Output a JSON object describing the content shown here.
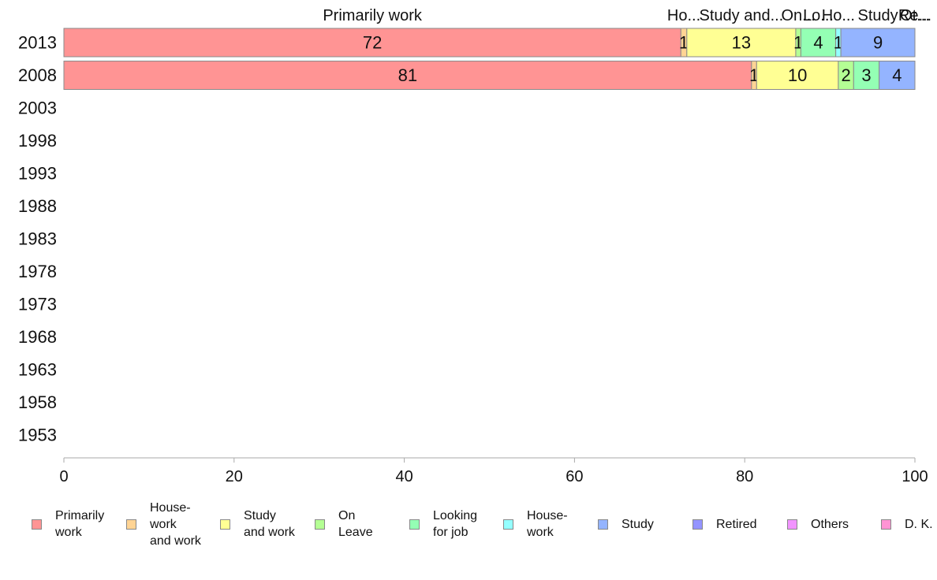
{
  "chart_data": {
    "type": "bar",
    "orientation": "horizontal",
    "stacked": true,
    "categories": [
      "2013",
      "2008",
      "2003",
      "1998",
      "1993",
      "1988",
      "1983",
      "1978",
      "1973",
      "1968",
      "1963",
      "1958",
      "1953"
    ],
    "xlim": [
      0,
      100
    ],
    "xticks": [
      "0",
      "20",
      "40",
      "60",
      "80",
      "100"
    ],
    "grid": false,
    "legend_position": "bottom",
    "series": [
      {
        "name": "Primarily work",
        "legend_label": "Primarily\nwork",
        "top_label": "Primarily work",
        "color": "#ff9494",
        "values": [
          72.5,
          80.8,
          null,
          null,
          null,
          null,
          null,
          null,
          null,
          null,
          null,
          null,
          null
        ],
        "data_labels": [
          "72",
          "81"
        ]
      },
      {
        "name": "House-work and work",
        "legend_label": "House-\nwork\nand work",
        "top_label": "Ho...",
        "color": "#ffd494",
        "values": [
          0.7,
          0.6,
          null,
          null,
          null,
          null,
          null,
          null,
          null,
          null,
          null,
          null,
          null
        ],
        "data_labels": [
          "1",
          "1"
        ]
      },
      {
        "name": "Study and work",
        "legend_label": "Study\nand work",
        "top_label": "Study and...",
        "color": "#ffff94",
        "values": [
          12.8,
          9.6,
          null,
          null,
          null,
          null,
          null,
          null,
          null,
          null,
          null,
          null,
          null
        ],
        "data_labels": [
          "13",
          "10"
        ]
      },
      {
        "name": "On Leave",
        "legend_label": "On\nLeave",
        "top_label": "On...",
        "color": "#b4ff94",
        "values": [
          0.6,
          1.8,
          null,
          null,
          null,
          null,
          null,
          null,
          null,
          null,
          null,
          null,
          null
        ],
        "data_labels": [
          "1",
          "2"
        ]
      },
      {
        "name": "Looking for job",
        "legend_label": "Looking\nfor job",
        "top_label": "Lo...",
        "color": "#94ffb4",
        "values": [
          4.1,
          3.0,
          null,
          null,
          null,
          null,
          null,
          null,
          null,
          null,
          null,
          null,
          null
        ],
        "data_labels": [
          "4",
          "3"
        ]
      },
      {
        "name": "House-work",
        "legend_label": "House-\nwork",
        "top_label": "Ho...",
        "color": "#94ffff",
        "values": [
          0.6,
          0.0,
          null,
          null,
          null,
          null,
          null,
          null,
          null,
          null,
          null,
          null,
          null
        ],
        "data_labels": [
          "1",
          ""
        ]
      },
      {
        "name": "Study",
        "legend_label": "Study",
        "top_label": "Study",
        "color": "#94b4ff",
        "values": [
          8.7,
          4.2,
          null,
          null,
          null,
          null,
          null,
          null,
          null,
          null,
          null,
          null,
          null
        ],
        "data_labels": [
          "9",
          "4"
        ]
      },
      {
        "name": "Retired",
        "legend_label": "Retired",
        "top_label": "Re...",
        "color": "#9494ff",
        "values": [
          0.0,
          0.0,
          null,
          null,
          null,
          null,
          null,
          null,
          null,
          null,
          null,
          null,
          null
        ],
        "data_labels": [
          "",
          ""
        ]
      },
      {
        "name": "Others",
        "legend_label": "Others",
        "top_label": "Ot...",
        "color": "#f294ff",
        "values": [
          0.0,
          0.0,
          null,
          null,
          null,
          null,
          null,
          null,
          null,
          null,
          null,
          null,
          null
        ],
        "data_labels": [
          "",
          ""
        ]
      },
      {
        "name": "D. K.",
        "legend_label": "D. K.",
        "top_label": "",
        "color": "#ff94d4",
        "values": [
          0.0,
          0.0,
          null,
          null,
          null,
          null,
          null,
          null,
          null,
          null,
          null,
          null,
          null
        ],
        "data_labels": [
          "",
          ""
        ]
      }
    ]
  }
}
